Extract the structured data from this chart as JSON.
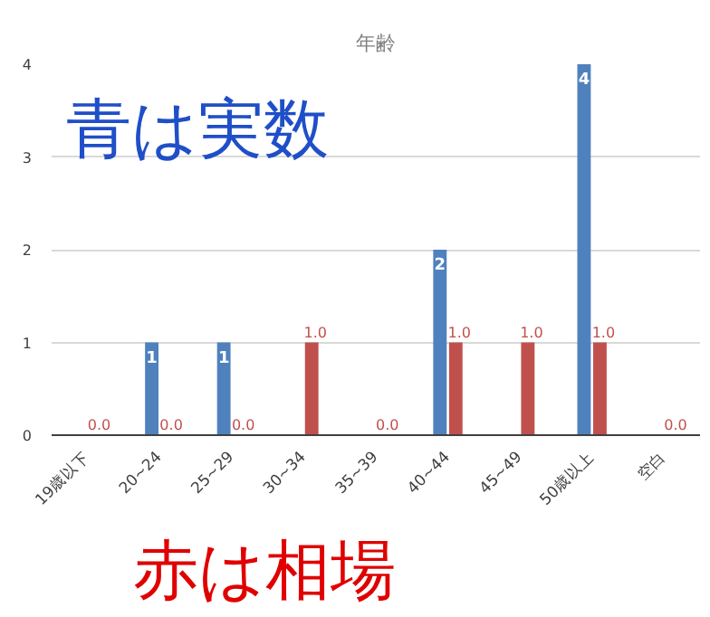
{
  "chart_data": {
    "type": "bar",
    "title": "年齢",
    "categories": [
      "19歳以下",
      "20~24",
      "25~29",
      "30~34",
      "35~39",
      "40~44",
      "45~49",
      "50歳以上",
      "空白"
    ],
    "series": [
      {
        "color": "#4f81bd",
        "values": [
          0,
          1,
          1,
          0,
          0,
          2,
          0,
          4,
          0
        ],
        "value_labels": [
          null,
          "1",
          "1",
          null,
          null,
          "2",
          null,
          "4",
          null
        ]
      },
      {
        "color": "#c0504d",
        "values": [
          0,
          0,
          0,
          1,
          0,
          1,
          1,
          1,
          0
        ],
        "value_labels": [
          "0.0",
          "0.0",
          "0.0",
          "1.0",
          "0.0",
          "1.0",
          "1.0",
          "1.0",
          "0.0"
        ]
      }
    ],
    "ylim": [
      0,
      4
    ],
    "yticks": [
      0,
      1,
      2,
      3,
      4
    ],
    "grid": "y",
    "annotations": [
      "青は実数",
      "赤は相場"
    ]
  }
}
